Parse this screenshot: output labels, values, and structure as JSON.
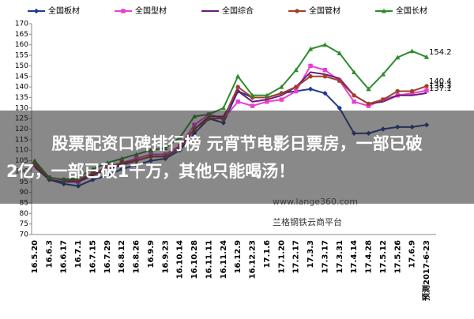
{
  "chart_data": {
    "type": "line",
    "categories": [
      "16.5.20",
      "16.6.3",
      "16.6.17",
      "16.7.1",
      "16.7.15",
      "16.7.29",
      "16.8.12",
      "16.8.26",
      "16.9.9",
      "16.9.23",
      "16.10.14",
      "16.10.28",
      "16.11.11",
      "16.11.24",
      "16.12.9",
      "16.12.23",
      "17.1.6",
      "17.1.20",
      "17.2.17",
      "17.3.3",
      "17.3.17",
      "17.3.31",
      "17.4.14",
      "17.4.28",
      "17.5.12",
      "17.5.26",
      "17.6.9",
      "预测2017-6-23"
    ],
    "series": [
      {
        "name": "全国板材",
        "color": "#1f3a93",
        "marker": "diamond",
        "end_label": false,
        "values": [
          104,
          96,
          94,
          93,
          96,
          98,
          101,
          103,
          105,
          106,
          110,
          118,
          125,
          123,
          138,
          135,
          135,
          137,
          138,
          139,
          137,
          130,
          118,
          118,
          120,
          121,
          121,
          122
        ]
      },
      {
        "name": "全国型材",
        "color": "#e83fd0",
        "marker": "square",
        "end_label": true,
        "values": [
          103,
          97,
          96,
          95,
          99,
          102,
          104,
          106,
          108,
          108,
          112,
          122,
          127,
          125,
          133,
          131,
          133,
          134,
          138,
          150,
          148,
          143,
          133,
          131,
          134,
          136,
          137,
          138.3
        ]
      },
      {
        "name": "全国综合",
        "color": "#6a1b7a",
        "marker": "none",
        "end_label": true,
        "values": [
          102,
          96,
          95,
          95,
          98,
          101,
          103,
          105,
          107,
          107,
          111,
          120,
          126,
          126,
          138,
          133,
          134,
          136,
          140,
          147,
          146,
          144,
          136,
          132,
          133,
          136,
          136,
          137.1
        ]
      },
      {
        "name": "全国管材",
        "color": "#a0402a",
        "marker": "circle",
        "end_label": true,
        "values": [
          103,
          97,
          96,
          96,
          99,
          101,
          104,
          105,
          107,
          107,
          111,
          120,
          125,
          125,
          140,
          135,
          135,
          137,
          140,
          145,
          145,
          143,
          136,
          132,
          134,
          138,
          138,
          140.4
        ]
      },
      {
        "name": "全国长材",
        "color": "#2e8b2e",
        "marker": "triangle",
        "end_label": true,
        "values": [
          105,
          97,
          96,
          97,
          101,
          104,
          106,
          108,
          110,
          111,
          116,
          126,
          127,
          130,
          145,
          136,
          136,
          140,
          148,
          158,
          160,
          156,
          147,
          139,
          146,
          154,
          157,
          154.2
        ]
      }
    ],
    "ylim": [
      70,
      170
    ],
    "yticks": [
      70,
      75,
      80,
      85,
      90,
      95,
      100,
      105,
      110,
      115,
      120,
      125,
      130,
      135,
      140,
      145,
      150,
      155,
      160,
      165,
      170
    ],
    "grid": false,
    "legend": "top",
    "watermark": [
      "www.lange360.com",
      "兰格钢铁云商平台"
    ]
  },
  "overlay": {
    "lines": [
      "股票配资口碑排行榜 元宵节电影日票房，一部已破",
      "2亿，一部已破1千万，其他只能喝汤！"
    ]
  }
}
